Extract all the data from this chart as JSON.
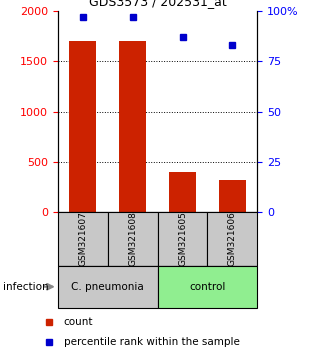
{
  "title": "GDS3573 / 202531_at",
  "samples": [
    "GSM321607",
    "GSM321608",
    "GSM321605",
    "GSM321606"
  ],
  "counts": [
    1700,
    1700,
    400,
    320
  ],
  "percentiles": [
    97,
    97,
    87,
    83
  ],
  "groups": [
    {
      "label": "C. pneumonia",
      "color": "#c8c8c8",
      "samples": [
        0,
        1
      ]
    },
    {
      "label": "control",
      "color": "#90ee90",
      "samples": [
        2,
        3
      ]
    }
  ],
  "bar_color": "#cc2200",
  "dot_color": "#0000cc",
  "left_ylim": [
    0,
    2000
  ],
  "right_ylim": [
    0,
    100
  ],
  "left_yticks": [
    0,
    500,
    1000,
    1500,
    2000
  ],
  "right_yticks": [
    0,
    25,
    50,
    75,
    100
  ],
  "right_yticklabels": [
    "0",
    "25",
    "50",
    "75",
    "100%"
  ],
  "gridlines": [
    500,
    1000,
    1500
  ],
  "infection_label": "infection",
  "legend_count": "count",
  "legend_pct": "percentile rank within the sample",
  "sample_box_color": "#c8c8c8",
  "arrow_color": "#888888"
}
